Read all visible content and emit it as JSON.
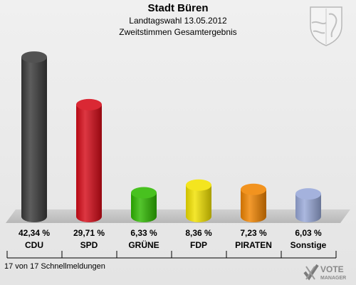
{
  "header": {
    "title": "Stadt Büren",
    "subtitle1": "Landtagswahl 13.05.2012",
    "subtitle2": "Zweitstimmen Gesamtergebnis"
  },
  "footer": {
    "text": "17 von 17 Schnellmeldungen"
  },
  "brand": {
    "line1": "VOTE",
    "line2": "MANAGER"
  },
  "chart_data": {
    "type": "bar",
    "categories": [
      "CDU",
      "SPD",
      "GRÜNE",
      "FDP",
      "PIRATEN",
      "Sonstige"
    ],
    "values": [
      42.34,
      29.71,
      6.33,
      8.36,
      7.23,
      6.03
    ],
    "labels": [
      "42,34 %",
      "29,71 %",
      "6,33 %",
      "8,36 %",
      "7,23 %",
      "6,03 %"
    ],
    "colors": [
      "#3a3a3a",
      "#d50b18",
      "#2fb800",
      "#f2e200",
      "#f08400",
      "#98a8d8"
    ],
    "ylim": [
      0,
      45
    ],
    "grid": false,
    "legend": "none"
  }
}
